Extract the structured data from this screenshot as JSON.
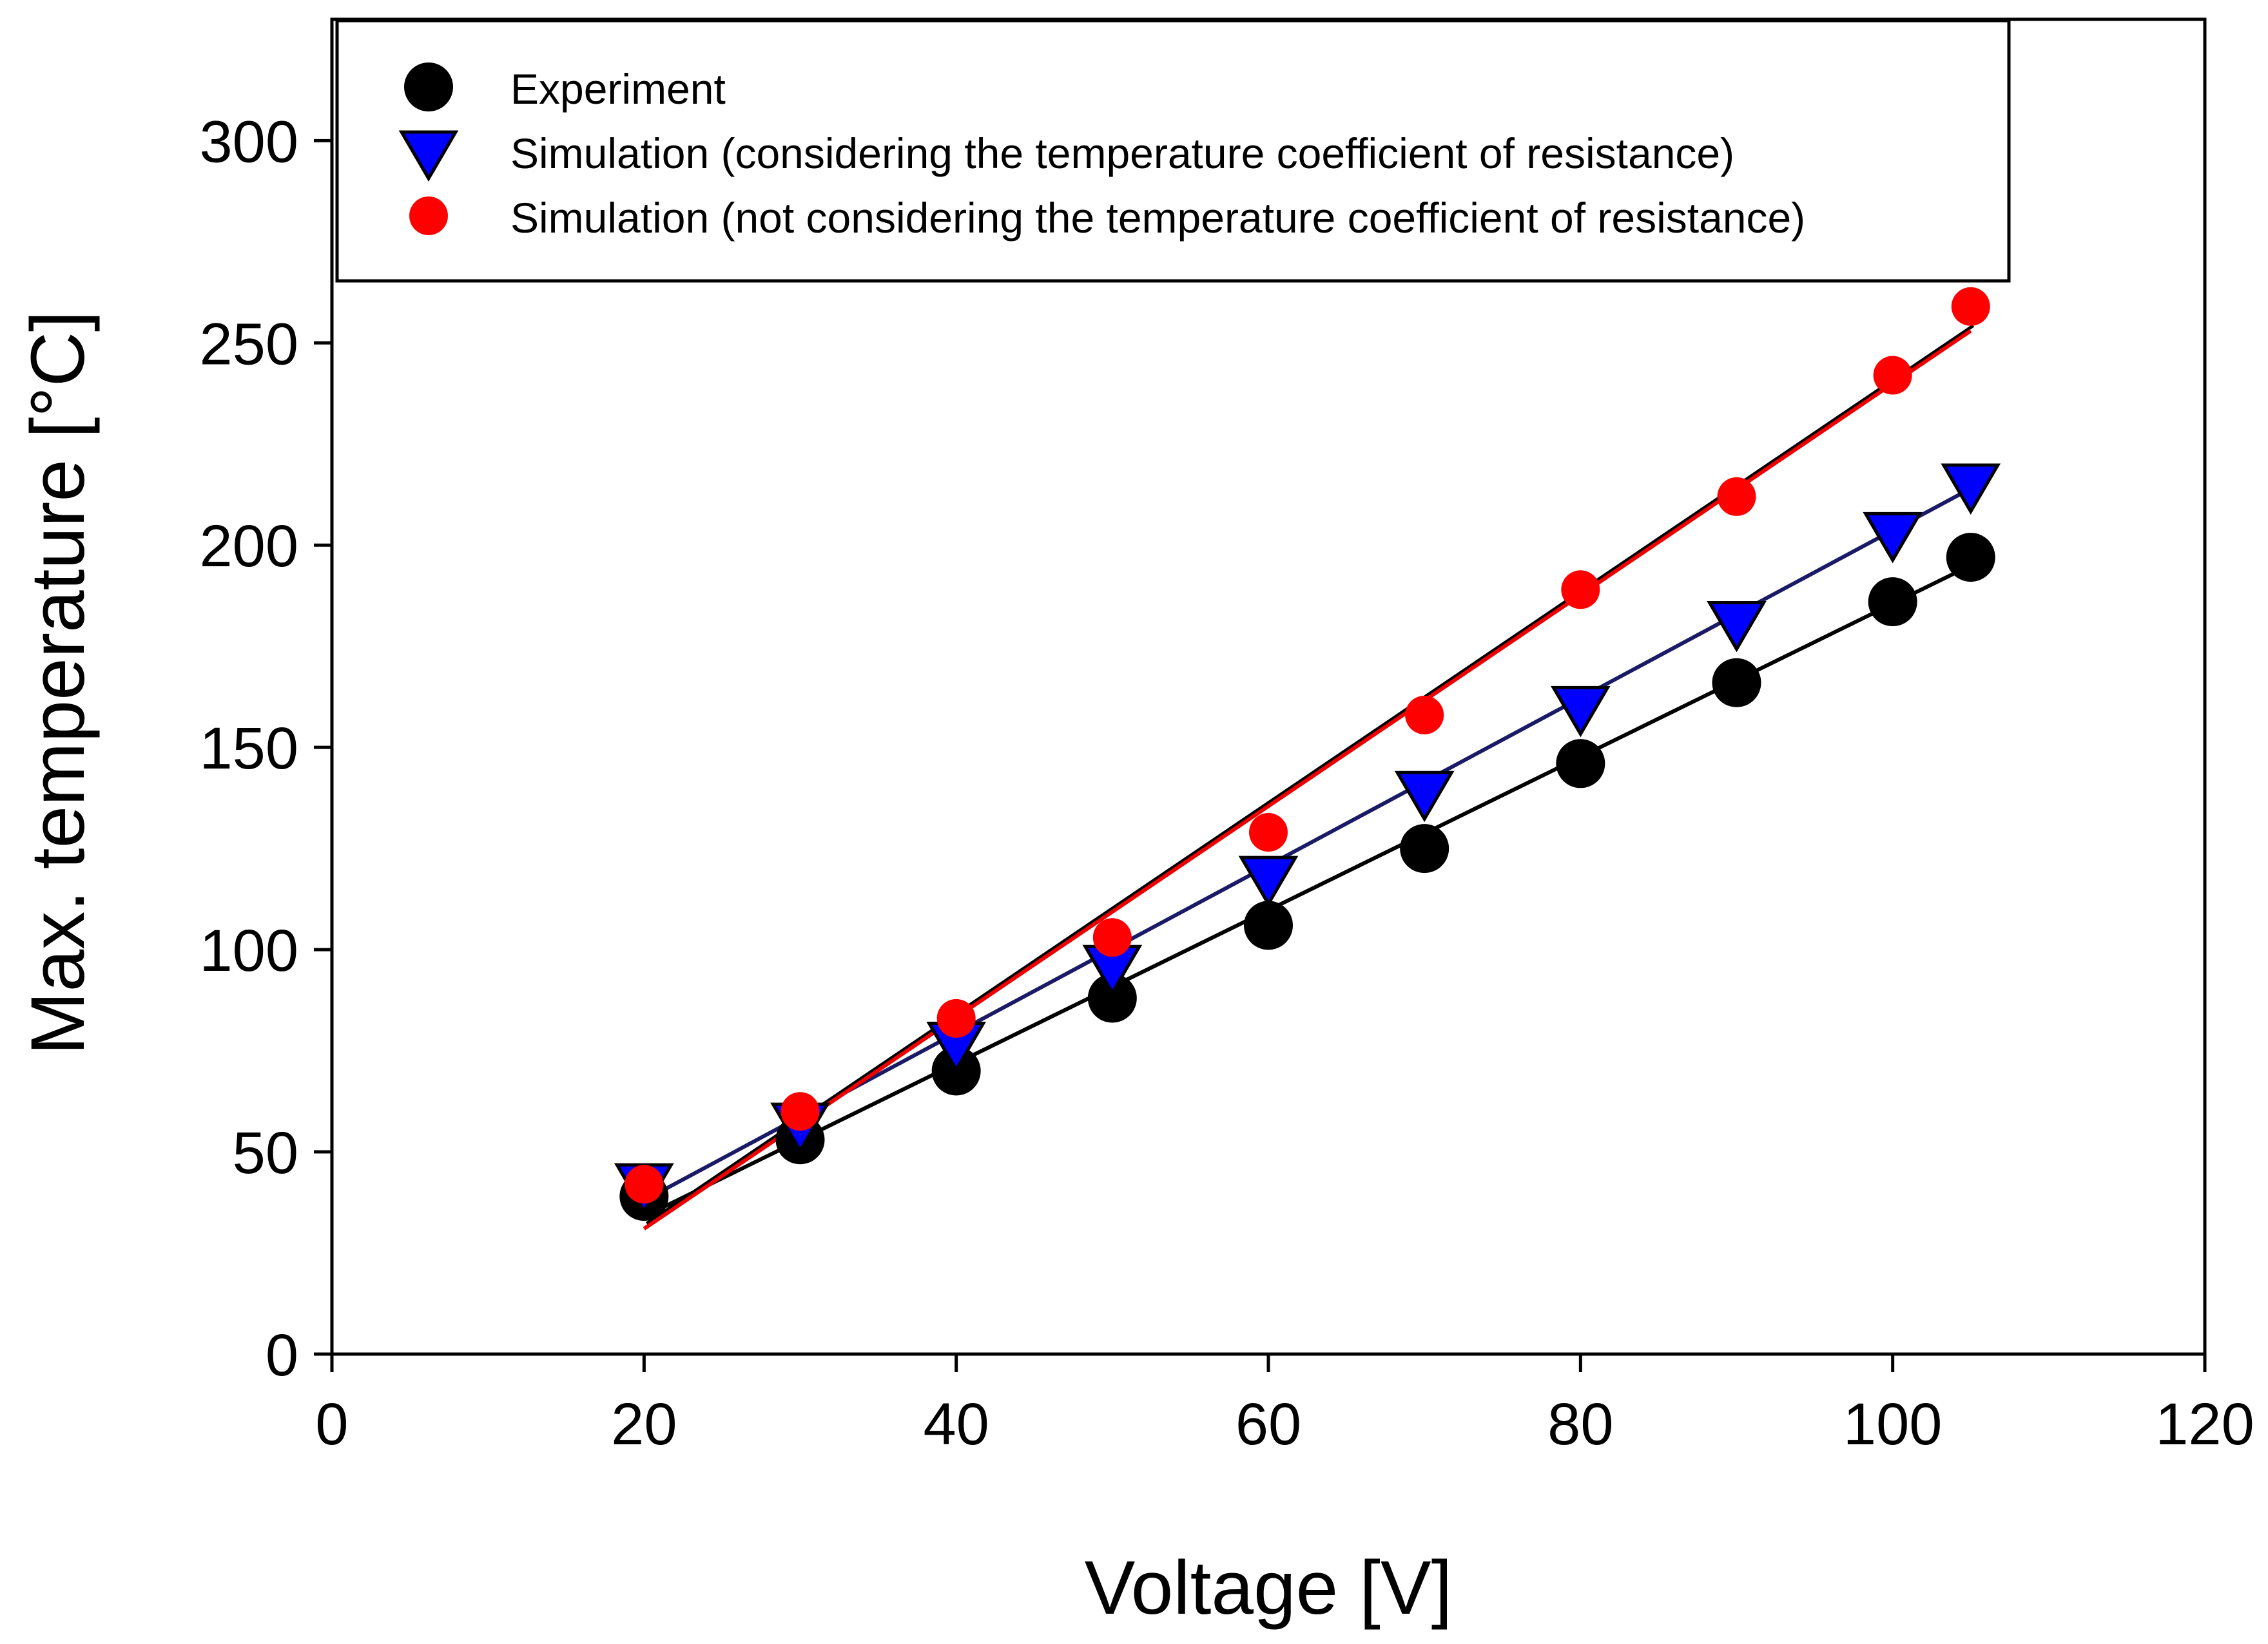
{
  "chart_data": {
    "type": "scatter",
    "title": "",
    "xlabel": "Voltage [V]",
    "ylabel": "Max. temperature [°C]",
    "xlim": [
      0,
      120
    ],
    "ylim": [
      0,
      330
    ],
    "xticks": [
      0,
      20,
      40,
      60,
      80,
      100,
      120
    ],
    "yticks": [
      0,
      50,
      100,
      150,
      200,
      250,
      300
    ],
    "x_tick_labels": [
      "0",
      "20",
      "40",
      "60",
      "80",
      "100",
      "120"
    ],
    "y_tick_labels": [
      "0",
      "50",
      "100",
      "150",
      "200",
      "250",
      "300"
    ],
    "grid": false,
    "legend_position": "top",
    "series": [
      {
        "name": "Experiment",
        "marker": "circle",
        "color": "#000000",
        "line_color": "#000000",
        "x": [
          20,
          30,
          40,
          50,
          60,
          70,
          80,
          90,
          100,
          105
        ],
        "y": [
          39,
          53,
          70,
          88,
          106,
          125,
          146,
          166,
          186,
          197
        ],
        "fit": {
          "x": [
            20,
            105
          ],
          "y": [
            34,
            195
          ]
        }
      },
      {
        "name": "Simulation (considering the temperature coefficient of resistance)",
        "marker": "triangle-down",
        "color": "#0000ff",
        "line_color": "#1a1a66",
        "x": [
          20,
          30,
          40,
          50,
          60,
          70,
          80,
          90,
          100,
          105
        ],
        "y": [
          42,
          57,
          77,
          96,
          118,
          139,
          160,
          181,
          203,
          215
        ],
        "fit": {
          "x": [
            20,
            105
          ],
          "y": [
            38,
            214
          ]
        }
      },
      {
        "name": "Simulation (not considering the temperature coefficient of resistance)",
        "marker": "circle",
        "color": "#ff0000",
        "line_color": "#ee0000",
        "x": [
          20,
          30,
          40,
          50,
          60,
          70,
          80,
          90,
          100,
          105
        ],
        "y": [
          42,
          60,
          83,
          103,
          129,
          158,
          189,
          212,
          242,
          259
        ],
        "fit": {
          "x": [
            20,
            105
          ],
          "y": [
            31,
            253
          ]
        }
      }
    ]
  }
}
